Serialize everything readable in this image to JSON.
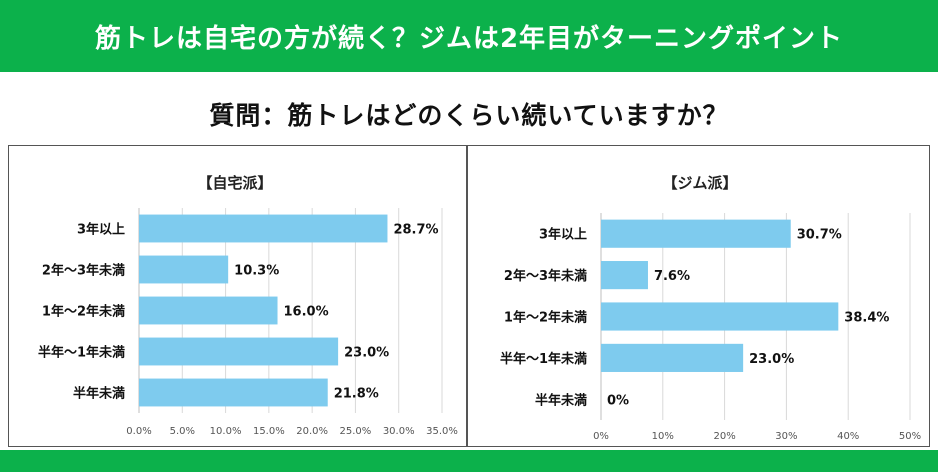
{
  "header": {
    "title": "筋トレは自宅の方が続く？ジムは2年目がターニングポイント"
  },
  "question": "質問：筋トレはどのくらい続いていますか？",
  "colors": {
    "banner": "#0cb14b",
    "bar": "#7ecbee",
    "grid": "#d9d9d9"
  },
  "chart_data": [
    {
      "type": "bar",
      "orientation": "horizontal",
      "title": "【自宅派】",
      "categories": [
        "3年以上",
        "2年～3年未満",
        "1年～2年未満",
        "半年～1年未満",
        "半年未満"
      ],
      "values": [
        28.7,
        10.3,
        16.0,
        23.0,
        21.8
      ],
      "value_labels": [
        "28.7%",
        "10.3%",
        "16.0%",
        "23.0%",
        "21.8%"
      ],
      "xlim": [
        0,
        35
      ],
      "xticks": [
        0,
        5,
        10,
        15,
        20,
        25,
        30,
        35
      ],
      "xtick_labels": [
        "0.0%",
        "5.0%",
        "10.0%",
        "15.0%",
        "20.0%",
        "25.0%",
        "30.0%",
        "35.0%"
      ],
      "grid": true,
      "legend": "none"
    },
    {
      "type": "bar",
      "orientation": "horizontal",
      "title": "【ジム派】",
      "categories": [
        "3年以上",
        "2年～3年未満",
        "1年～2年未満",
        "半年～1年未満",
        "半年未満"
      ],
      "values": [
        30.7,
        7.6,
        38.4,
        23.0,
        0
      ],
      "value_labels": [
        "30.7%",
        "7.6%",
        "38.4%",
        "23.0%",
        "0%"
      ],
      "xlim": [
        0,
        50
      ],
      "xticks": [
        0,
        10,
        20,
        30,
        40,
        50
      ],
      "xtick_labels": [
        "0%",
        "10%",
        "20%",
        "30%",
        "40%",
        "50%"
      ],
      "grid": true,
      "legend": "none"
    }
  ]
}
